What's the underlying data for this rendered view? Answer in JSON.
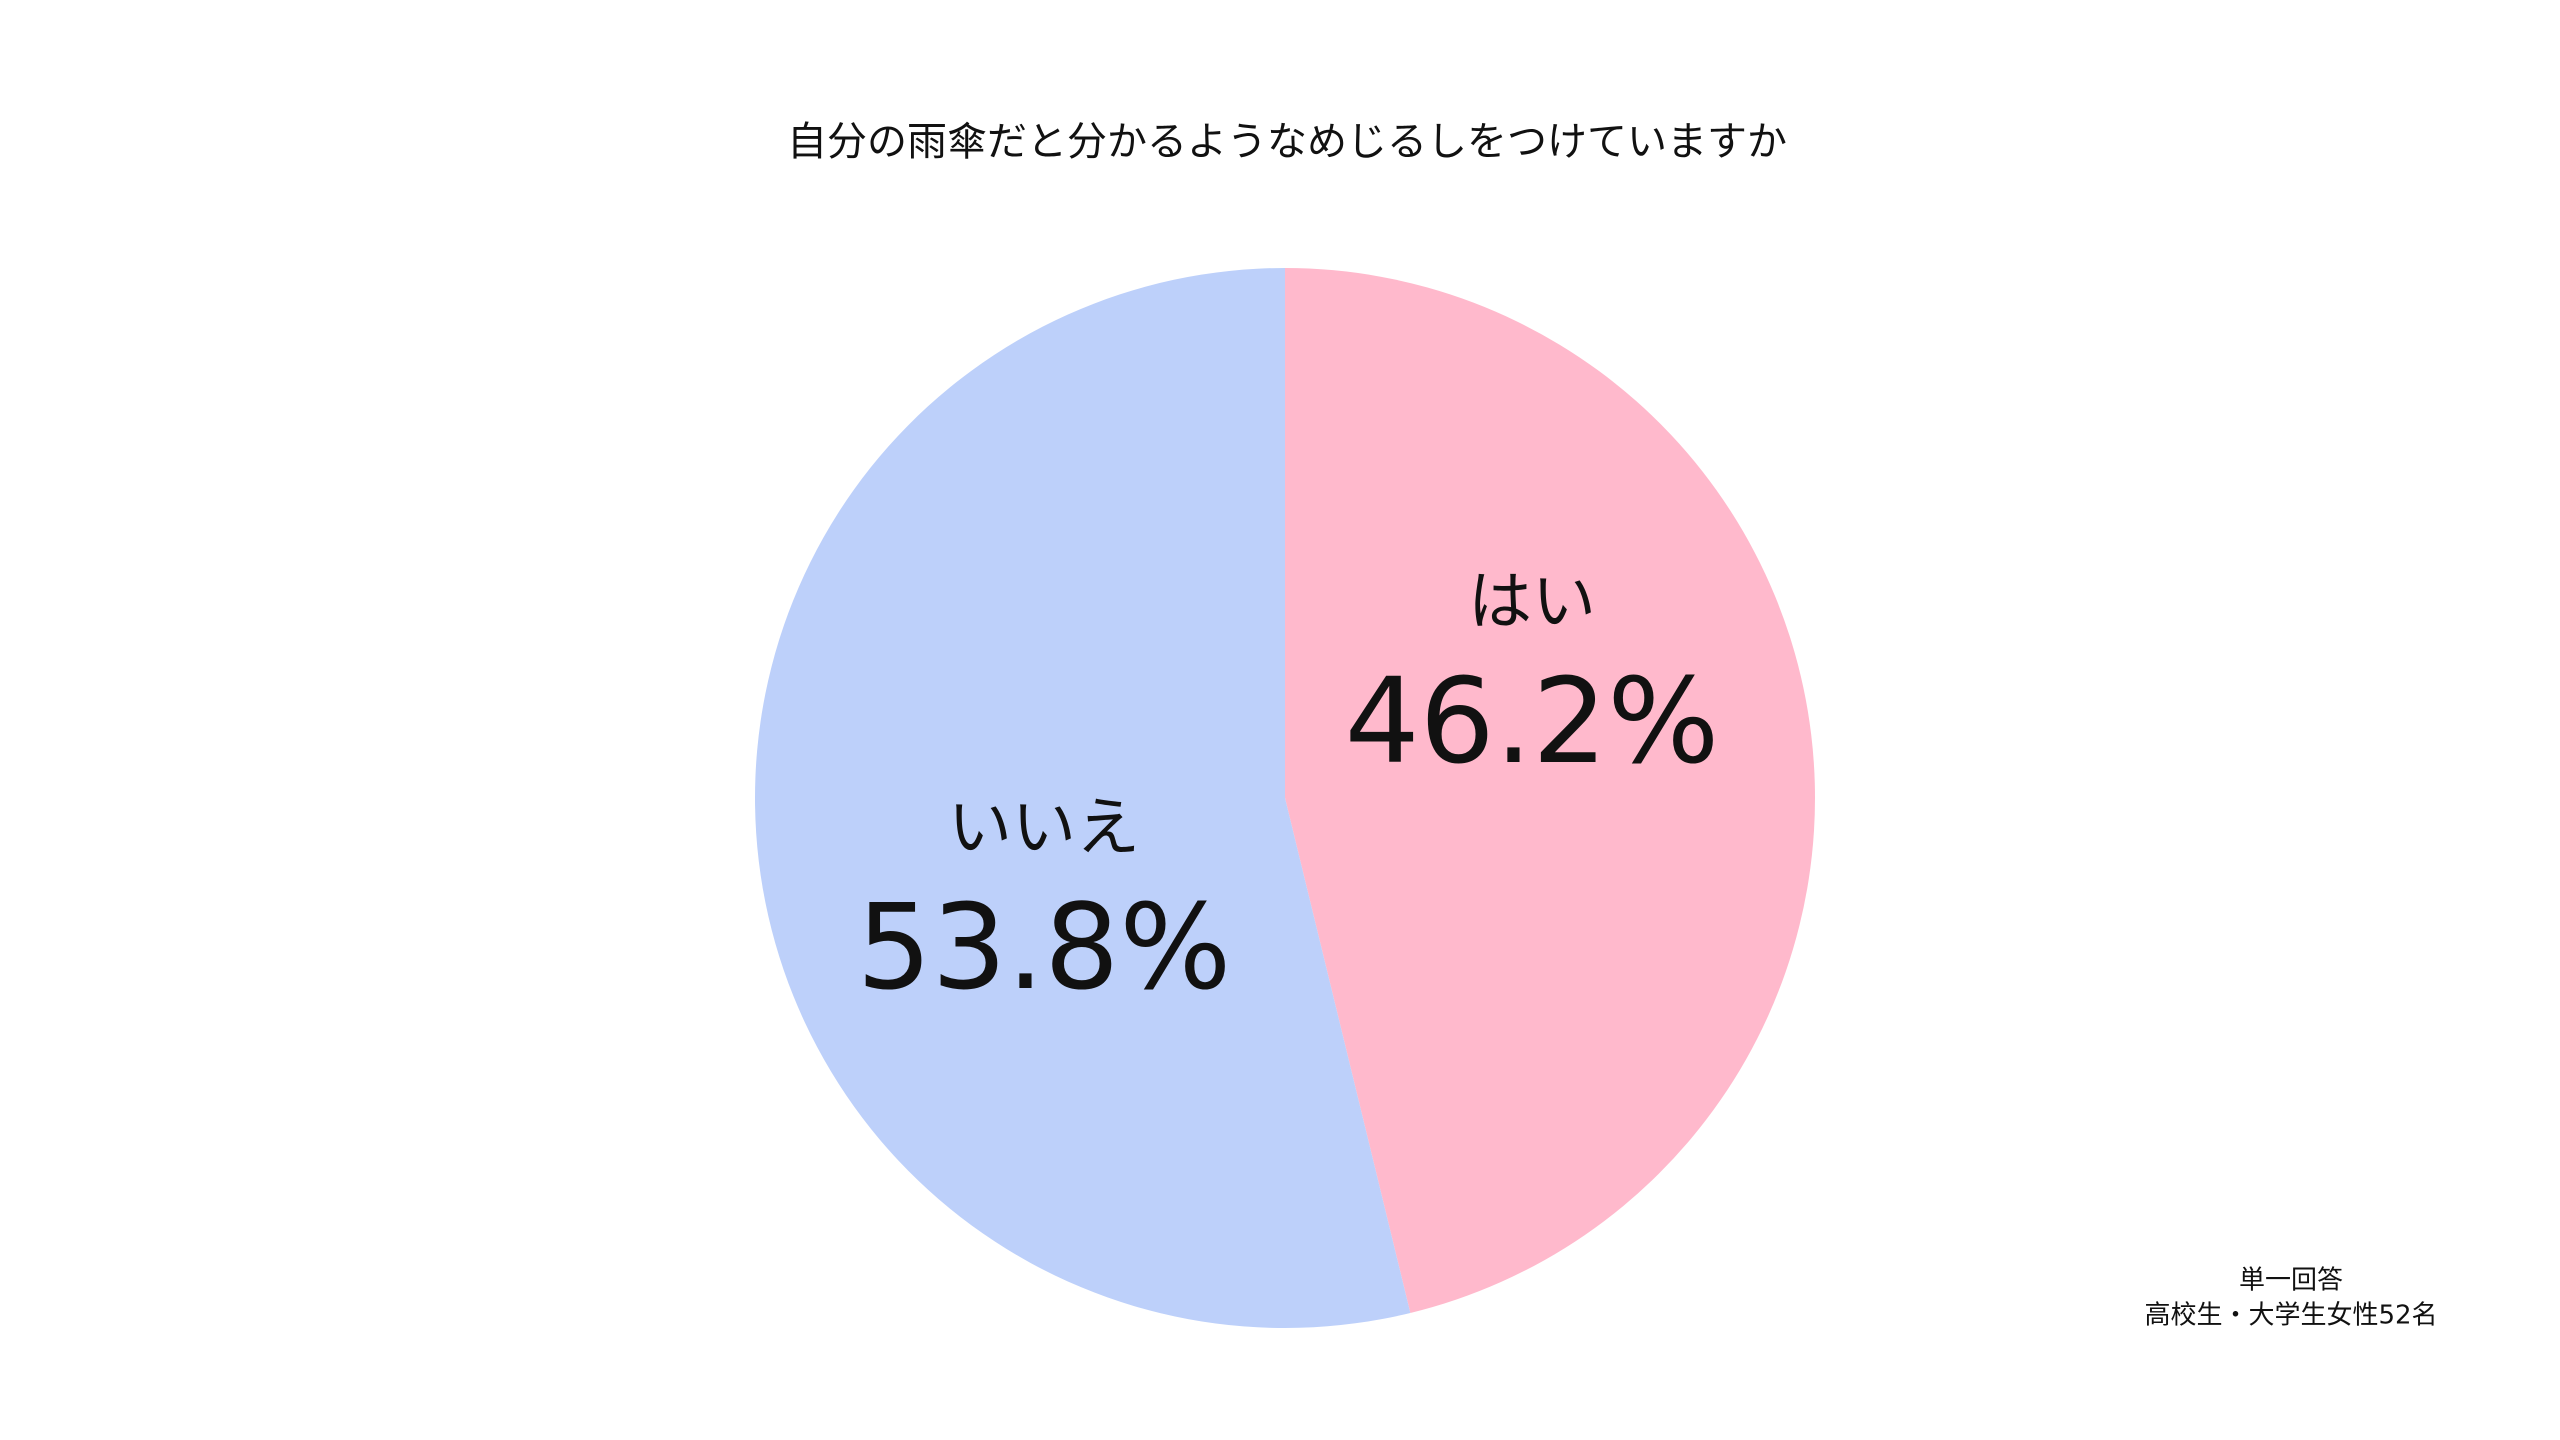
{
  "chart_data": {
    "type": "pie",
    "title": "自分の雨傘だと分かるようなめじるしをつけていますか",
    "categories": [
      "はい",
      "いいえ"
    ],
    "values": [
      46.2,
      53.8
    ],
    "value_labels": [
      "46.2%",
      "53.8%"
    ],
    "colors": [
      "#ffb9cc",
      "#bdd0fa"
    ],
    "notes": [
      "単一回答",
      "高校生・大学生女性52名"
    ]
  }
}
